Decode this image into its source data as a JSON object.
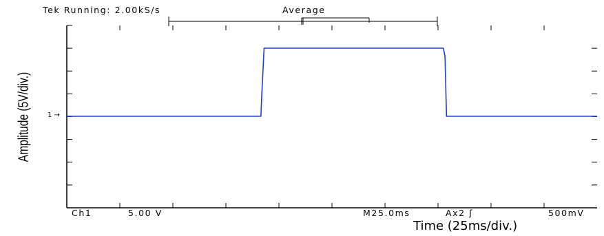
{
  "status": {
    "left": "Tek Running: 2.00kS/s",
    "right": "Average"
  },
  "bottom": {
    "channel": "Ch1",
    "volts_per_div": "5.00 V",
    "timebase": "M25.0ms",
    "trigger": "Ax2 ʃ",
    "trigger_level": "500mV"
  },
  "marker": {
    "channel_ref": "1 →"
  },
  "chart_data": {
    "type": "line",
    "title": "",
    "xlabel": "Time  (25ms/div.)",
    "ylabel": "Amplitude (5V/div.)",
    "x_unit": "ms",
    "y_unit": "V",
    "xlim": [
      0,
      250
    ],
    "ylim": [
      -20,
      20
    ],
    "grid_divisions": {
      "x": 10,
      "y": 8
    },
    "series": [
      {
        "color": "#1f3fc8",
        "x": [
          0,
          91.5,
          92.0,
          93.0,
          135.0,
          177.5,
          178.3,
          179.0,
          250
        ],
        "y": [
          0,
          0,
          5.5,
          14.8,
          14.8,
          14.8,
          13.0,
          0,
          0
        ]
      }
    ]
  }
}
